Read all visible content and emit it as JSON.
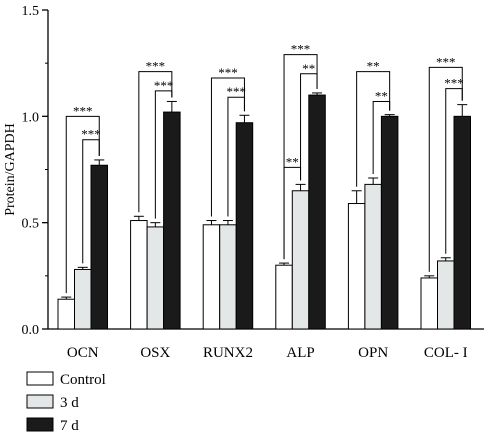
{
  "chart_data": {
    "type": "bar",
    "ylabel": "Protein/GAPDH",
    "ylim": [
      0,
      1.5
    ],
    "yticks": [
      "0.0",
      "0.5",
      "1.0",
      "1.5"
    ],
    "categories": [
      "OCN",
      "OSX",
      "RUNX2",
      "ALP",
      "OPN",
      "COL- I"
    ],
    "series": [
      {
        "name": "Control",
        "color": "#ffffff",
        "values": [
          0.14,
          0.51,
          0.49,
          0.3,
          0.59,
          0.24
        ],
        "errors": [
          0.01,
          0.02,
          0.02,
          0.01,
          0.06,
          0.01
        ]
      },
      {
        "name": "3 d",
        "color": "#e4e7e7",
        "values": [
          0.28,
          0.48,
          0.49,
          0.65,
          0.68,
          0.32
        ],
        "errors": [
          0.01,
          0.02,
          0.02,
          0.03,
          0.03,
          0.015
        ]
      },
      {
        "name": "7 d",
        "color": "#1a1a1a",
        "values": [
          0.77,
          1.02,
          0.97,
          1.1,
          1.0,
          1.0
        ],
        "errors": [
          0.025,
          0.05,
          0.035,
          0.01,
          0.008,
          0.055
        ]
      }
    ],
    "significance": [
      {
        "category": 0,
        "from": 0,
        "to": 2,
        "label": "***",
        "level": 1.0
      },
      {
        "category": 0,
        "from": 1,
        "to": 2,
        "label": "***",
        "level": 0.89
      },
      {
        "category": 1,
        "from": 0,
        "to": 2,
        "label": "***",
        "level": 1.21
      },
      {
        "category": 1,
        "from": 1,
        "to": 2,
        "label": "***",
        "level": 1.12
      },
      {
        "category": 2,
        "from": 0,
        "to": 2,
        "label": "***",
        "level": 1.18
      },
      {
        "category": 2,
        "from": 1,
        "to": 2,
        "label": "***",
        "level": 1.09
      },
      {
        "category": 3,
        "from": 0,
        "to": 2,
        "label": "***",
        "level": 1.29
      },
      {
        "category": 3,
        "from": 1,
        "to": 2,
        "label": "**",
        "level": 1.2
      },
      {
        "category": 3,
        "from": 0,
        "to": 1,
        "label": "**",
        "level": 0.76
      },
      {
        "category": 4,
        "from": 0,
        "to": 2,
        "label": "**",
        "level": 1.21
      },
      {
        "category": 4,
        "from": 1,
        "to": 2,
        "label": "**",
        "level": 1.07
      },
      {
        "category": 5,
        "from": 0,
        "to": 2,
        "label": "***",
        "level": 1.23
      },
      {
        "category": 5,
        "from": 1,
        "to": 2,
        "label": "***",
        "level": 1.13
      }
    ],
    "legend": {
      "position": "bottom-left"
    }
  }
}
